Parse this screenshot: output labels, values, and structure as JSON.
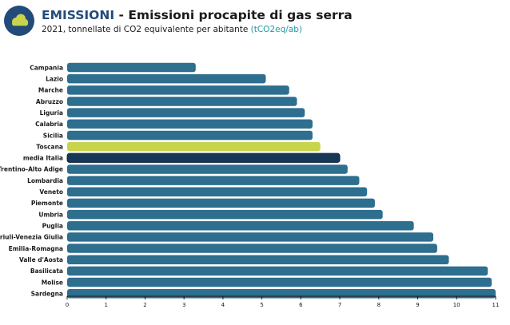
{
  "header": {
    "logo_icon": "cloud-icon",
    "title_brand": "EMISSIONI",
    "title_separator": " - ",
    "title_rest": "Emissioni procapite di gas serra",
    "subtitle_main": "2021, tonnellate di CO2 equivalente per abitante ",
    "subtitle_unit": "(tCO2eq/ab)"
  },
  "colors": {
    "brand": "#234b7a",
    "bar_default": "#2e6e8e",
    "bar_highlight": "#c8d44b",
    "bar_average": "#163756",
    "unit_text": "#1f9aa6"
  },
  "chart_data": {
    "type": "bar",
    "orientation": "horizontal",
    "categories": [
      "Campania",
      "Lazio",
      "Marche",
      "Abruzzo",
      "Liguria",
      "Calabria",
      "Sicilia",
      "Toscana",
      "media Italia",
      "Trentino-Alto Adige",
      "Lombardia",
      "Veneto",
      "Piemonte",
      "Umbria",
      "Puglia",
      "Friuli-Venezia Giulia",
      "Emilia-Romagna",
      "Valle d'Aosta",
      "Basilicata",
      "Molise",
      "Sardegna"
    ],
    "values": [
      3.3,
      5.1,
      5.7,
      5.9,
      6.1,
      6.3,
      6.3,
      6.5,
      7.0,
      7.2,
      7.5,
      7.7,
      7.9,
      8.1,
      8.9,
      9.4,
      9.5,
      9.8,
      10.8,
      10.9,
      11.0
    ],
    "highlight": {
      "Toscana": "highlight",
      "media Italia": "average"
    },
    "xlim": [
      0,
      11
    ],
    "xticks": [
      "0",
      "1",
      "2",
      "3",
      "4",
      "5",
      "6",
      "7",
      "8",
      "9",
      "10",
      "11"
    ],
    "xlabel": "",
    "ylabel": "",
    "grid": false,
    "legend": "none"
  }
}
